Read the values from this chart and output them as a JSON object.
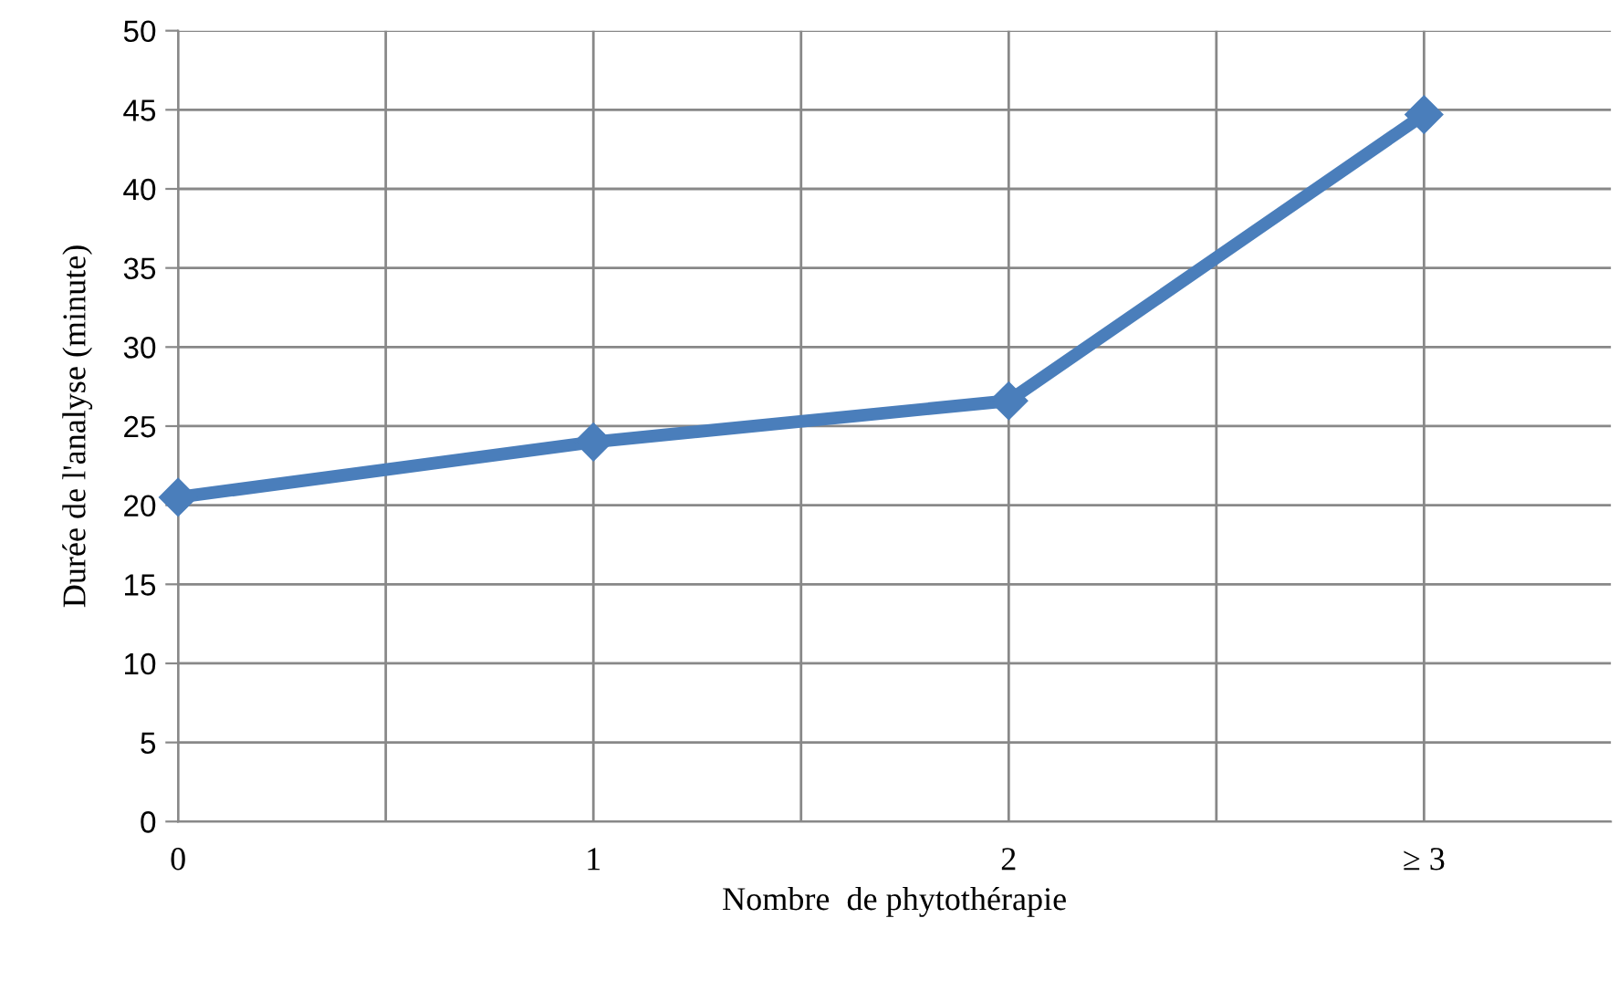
{
  "chart_data": {
    "type": "line",
    "xlabel": "Nombre  de phytothérapie",
    "ylabel": "Durée de l'analyse (minute)",
    "categories": [
      "0",
      "1",
      "2",
      "≥ 3"
    ],
    "series": [
      {
        "color": "#4a7ebb",
        "values": [
          20.5,
          24.0,
          26.6,
          44.7
        ]
      }
    ],
    "ylim": [
      0,
      50
    ],
    "yticks": [
      0,
      5,
      10,
      15,
      20,
      25,
      30,
      35,
      40,
      45,
      50
    ],
    "grid": true,
    "marker": "diamond",
    "line_style": "solid",
    "legend": false
  }
}
